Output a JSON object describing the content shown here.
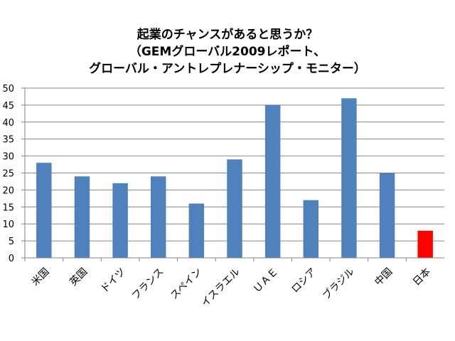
{
  "chart_data": {
    "type": "bar",
    "title_lines": [
      "起業のチャンスがあると思うか？",
      "（GEMグローバル2009レポート、",
      "グローバル・アントレプレナーシップ・モニター）"
    ],
    "categories": [
      "米国",
      "英国",
      "ドイツ",
      "フランス",
      "スペイン",
      "イスラエル",
      "ＵＡＥ",
      "ロシア",
      "ブラジル",
      "中国",
      "日本"
    ],
    "values": [
      28,
      24,
      22,
      24,
      16,
      29,
      45,
      17,
      47,
      25,
      8
    ],
    "colors": [
      "#4F81BD",
      "#4F81BD",
      "#4F81BD",
      "#4F81BD",
      "#4F81BD",
      "#4F81BD",
      "#4F81BD",
      "#4F81BD",
      "#4F81BD",
      "#4F81BD",
      "#FF0000"
    ],
    "ylim": [
      0,
      50
    ],
    "yticks": [
      0,
      5,
      10,
      15,
      20,
      25,
      30,
      35,
      40,
      45,
      50
    ],
    "grid": true,
    "legend": "none",
    "axis_color": "#868686",
    "grid_color": "#868686"
  }
}
